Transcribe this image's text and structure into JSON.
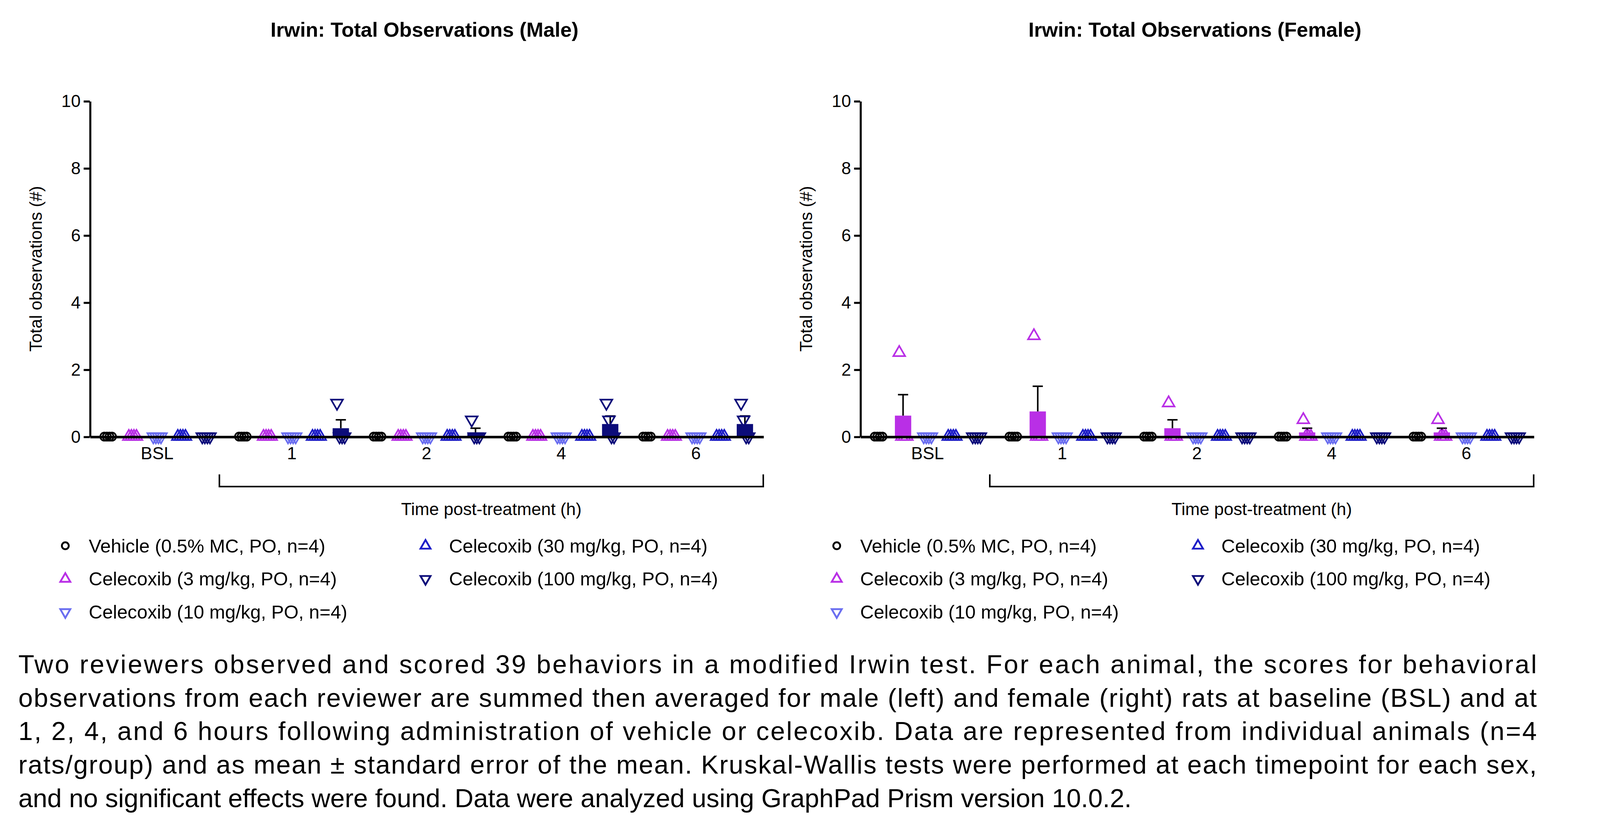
{
  "chart_data": [
    {
      "type": "bar",
      "title": "Irwin: Total Observations (Male)",
      "x_label": "Time post-treatment (h)",
      "y_label": "Total observations (#)",
      "categories": [
        "BSL",
        "1",
        "2",
        "4",
        "6"
      ],
      "ylim": [
        0,
        10
      ],
      "yticks": [
        0,
        2,
        4,
        6,
        8,
        10
      ],
      "legend": "bottom",
      "series": [
        {
          "name": "Vehicle (0.5% MC, PO, n=4)",
          "color": "#000000",
          "marker": "circle",
          "values": [
            0,
            0,
            0,
            0,
            0
          ],
          "errors": [
            0,
            0,
            0,
            0,
            0
          ],
          "points": [
            [
              0,
              0,
              0,
              0
            ],
            [
              0,
              0,
              0,
              0
            ],
            [
              0,
              0,
              0,
              0
            ],
            [
              0,
              0,
              0,
              0
            ],
            [
              0,
              0,
              0,
              0
            ]
          ]
        },
        {
          "name": "Celecoxib (3 mg/kg, PO, n=4)",
          "color": "#b92fe6",
          "marker": "triangle-up",
          "values": [
            0,
            0,
            0,
            0,
            0
          ],
          "errors": [
            0,
            0,
            0,
            0,
            0
          ],
          "points": [
            [
              0,
              0,
              0,
              0
            ],
            [
              0,
              0,
              0,
              0
            ],
            [
              0,
              0,
              0,
              0
            ],
            [
              0,
              0,
              0,
              0
            ],
            [
              0,
              0,
              0,
              0
            ]
          ]
        },
        {
          "name": "Celecoxib (10 mg/kg, PO, n=4)",
          "color": "#6a6ef0",
          "marker": "triangle-down",
          "values": [
            0,
            0,
            0,
            0,
            0
          ],
          "errors": [
            0,
            0,
            0,
            0,
            0
          ],
          "points": [
            [
              0,
              0,
              0,
              0
            ],
            [
              0,
              0,
              0,
              0
            ],
            [
              0,
              0,
              0,
              0
            ],
            [
              0,
              0,
              0,
              0
            ],
            [
              0,
              0,
              0,
              0
            ]
          ]
        },
        {
          "name": "Celecoxib (30 mg/kg, PO, n=4)",
          "color": "#1e1ec8",
          "marker": "triangle-up",
          "values": [
            0,
            0,
            0,
            0,
            0
          ],
          "errors": [
            0,
            0,
            0,
            0,
            0
          ],
          "points": [
            [
              0,
              0,
              0,
              0
            ],
            [
              0,
              0,
              0,
              0
            ],
            [
              0,
              0,
              0,
              0
            ],
            [
              0,
              0,
              0,
              0
            ],
            [
              0,
              0,
              0,
              0
            ]
          ]
        },
        {
          "name": "Celecoxib (100 mg/kg, PO, n=4)",
          "color": "#0c0c7a",
          "marker": "triangle-down",
          "values": [
            0,
            0.25,
            0.125,
            0.375,
            0.375
          ],
          "errors": [
            0,
            0.25,
            0.125,
            0.239,
            0.239
          ],
          "points": [
            [
              0,
              0,
              0,
              0
            ],
            [
              1,
              0,
              0,
              0
            ],
            [
              0.5,
              0,
              0,
              0
            ],
            [
              1,
              0.5,
              0,
              0
            ],
            [
              1,
              0.5,
              0,
              0
            ]
          ]
        }
      ]
    },
    {
      "type": "bar",
      "title": "Irwin: Total Observations (Female)",
      "x_label": "Time post-treatment (h)",
      "y_label": "Total observations (#)",
      "categories": [
        "BSL",
        "1",
        "2",
        "4",
        "6"
      ],
      "ylim": [
        0,
        10
      ],
      "yticks": [
        0,
        2,
        4,
        6,
        8,
        10
      ],
      "legend": "bottom",
      "series": [
        {
          "name": "Vehicle (0.5% MC, PO, n=4)",
          "color": "#000000",
          "marker": "circle",
          "values": [
            0,
            0,
            0,
            0,
            0
          ],
          "errors": [
            0,
            0,
            0,
            0,
            0
          ],
          "points": [
            [
              0,
              0,
              0,
              0
            ],
            [
              0,
              0,
              0,
              0
            ],
            [
              0,
              0,
              0,
              0
            ],
            [
              0,
              0,
              0,
              0
            ],
            [
              0,
              0,
              0,
              0
            ]
          ]
        },
        {
          "name": "Celecoxib (3 mg/kg, PO, n=4)",
          "color": "#b92fe6",
          "marker": "triangle-up",
          "values": [
            0.625,
            0.75,
            0.25,
            0.125,
            0.125
          ],
          "errors": [
            0.625,
            0.75,
            0.25,
            0.125,
            0.125
          ],
          "points": [
            [
              2.5,
              0,
              0,
              0
            ],
            [
              3,
              0,
              0,
              0
            ],
            [
              1,
              0,
              0,
              0
            ],
            [
              0.5,
              0,
              0,
              0
            ],
            [
              0.5,
              0,
              0,
              0
            ]
          ]
        },
        {
          "name": "Celecoxib (10 mg/kg, PO, n=4)",
          "color": "#6a6ef0",
          "marker": "triangle-down",
          "values": [
            0,
            0,
            0,
            0,
            0
          ],
          "errors": [
            0,
            0,
            0,
            0,
            0
          ],
          "points": [
            [
              0,
              0,
              0,
              0
            ],
            [
              0,
              0,
              0,
              0
            ],
            [
              0,
              0,
              0,
              0
            ],
            [
              0,
              0,
              0,
              0
            ],
            [
              0,
              0,
              0,
              0
            ]
          ]
        },
        {
          "name": "Celecoxib (30 mg/kg, PO, n=4)",
          "color": "#1e1ec8",
          "marker": "triangle-up",
          "values": [
            0,
            0,
            0,
            0,
            0
          ],
          "errors": [
            0,
            0,
            0,
            0,
            0
          ],
          "points": [
            [
              0,
              0,
              0,
              0
            ],
            [
              0,
              0,
              0,
              0
            ],
            [
              0,
              0,
              0,
              0
            ],
            [
              0,
              0,
              0,
              0
            ],
            [
              0,
              0,
              0,
              0
            ]
          ]
        },
        {
          "name": "Celecoxib (100 mg/kg, PO, n=4)",
          "color": "#0c0c7a",
          "marker": "triangle-down",
          "values": [
            0,
            0,
            0,
            0,
            0
          ],
          "errors": [
            0,
            0,
            0,
            0,
            0
          ],
          "points": [
            [
              0,
              0,
              0,
              0
            ],
            [
              0,
              0,
              0,
              0
            ],
            [
              0,
              0,
              0,
              0
            ],
            [
              0,
              0,
              0,
              0
            ],
            [
              0,
              0,
              0,
              0
            ]
          ]
        }
      ]
    }
  ],
  "caption": [
    "Two reviewers observed and scored 39 behaviors in a modified Irwin test. For each animal, the scores for behavioral",
    "observations from each reviewer are summed then averaged for male (left) and female (right) rats at baseline (BSL) and at",
    "1, 2, 4, and 6 hours following administration of vehicle or celecoxib. Data are represented from individual animals (n=4",
    "rats/group) and as mean ± standard error of the mean. Kruskal-Wallis tests were performed at each timepoint for each sex,",
    "and no significant effects were found. Data were analyzed using GraphPad Prism version 10.0.2."
  ]
}
